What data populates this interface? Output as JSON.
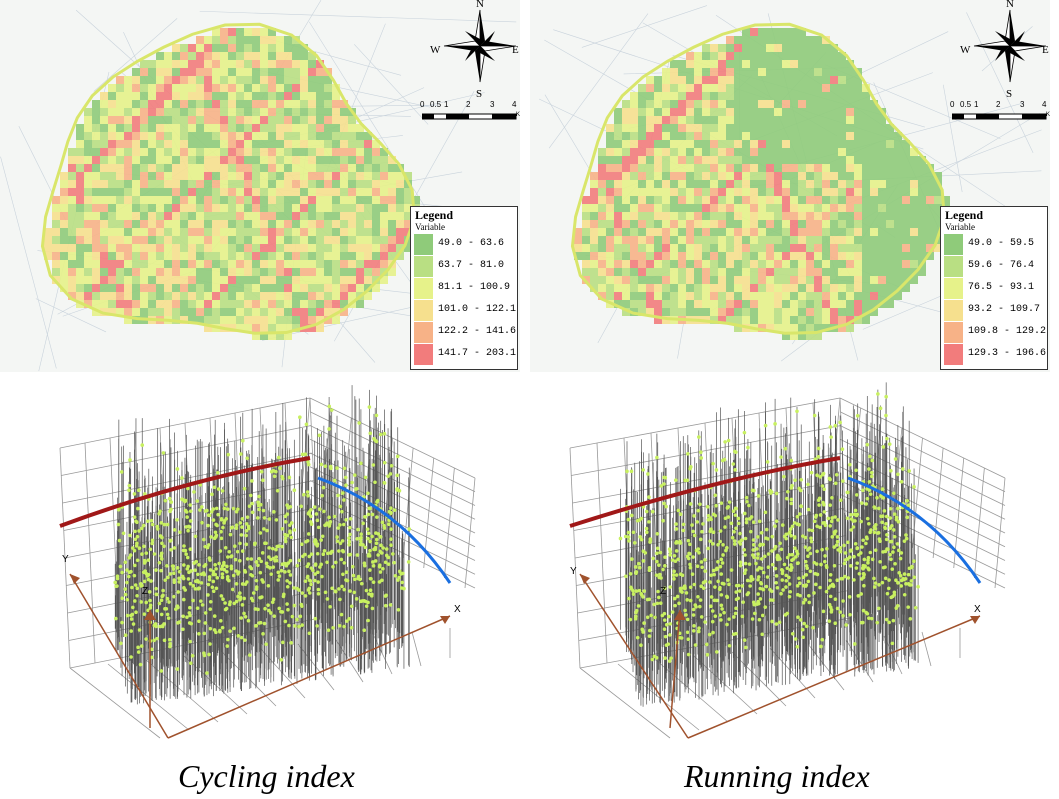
{
  "maps": [
    {
      "legend": {
        "title": "Legend",
        "variable": "Variable",
        "classes": [
          {
            "label": "49.0 - 63.6",
            "color": "#8fcb7a"
          },
          {
            "label": "63.7 - 81.0",
            "color": "#b9df83"
          },
          {
            "label": "81.1 - 100.9",
            "color": "#e6f28a"
          },
          {
            "label": "101.0 - 122.1",
            "color": "#f6e08e"
          },
          {
            "label": "122.2 - 141.6",
            "color": "#f7b287"
          },
          {
            "label": "141.7 - 203.1",
            "color": "#f27c7c"
          }
        ]
      },
      "compass": {
        "n": "N",
        "s": "S",
        "e": "E",
        "w": "W"
      },
      "scale": {
        "ticks": [
          "0",
          "0.5",
          "1",
          "2",
          "3",
          "4"
        ],
        "unit": "Km"
      }
    },
    {
      "legend": {
        "title": "Legend",
        "variable": "Variable",
        "classes": [
          {
            "label": "49.0 - 59.5",
            "color": "#8fcb7a"
          },
          {
            "label": "59.6 - 76.4",
            "color": "#b9df83"
          },
          {
            "label": "76.5 - 93.1",
            "color": "#e6f28a"
          },
          {
            "label": "93.2 - 109.7",
            "color": "#f6e08e"
          },
          {
            "label": "109.8 - 129.2",
            "color": "#f7b287"
          },
          {
            "label": "129.3 - 196.6",
            "color": "#f27c7c"
          }
        ]
      },
      "compass": {
        "n": "N",
        "s": "S",
        "e": "E",
        "w": "W"
      },
      "scale": {
        "ticks": [
          "0",
          "0.5",
          "1",
          "2",
          "3",
          "4"
        ],
        "unit": "Km"
      }
    }
  ],
  "plots3d": [
    {
      "axes": {
        "x": "X",
        "y": "Y",
        "z": "Z"
      },
      "caption": "Cycling index"
    },
    {
      "axes": {
        "x": "X",
        "y": "Y",
        "z": "Z"
      },
      "caption": "Running index"
    }
  ],
  "colors": {
    "boundary": "#d9e66a",
    "spike": "#555555",
    "point": "#c8f060",
    "red_curve": "#a01818",
    "blue_curve": "#1a6fe0",
    "axis_arrow": "#a0522d"
  }
}
